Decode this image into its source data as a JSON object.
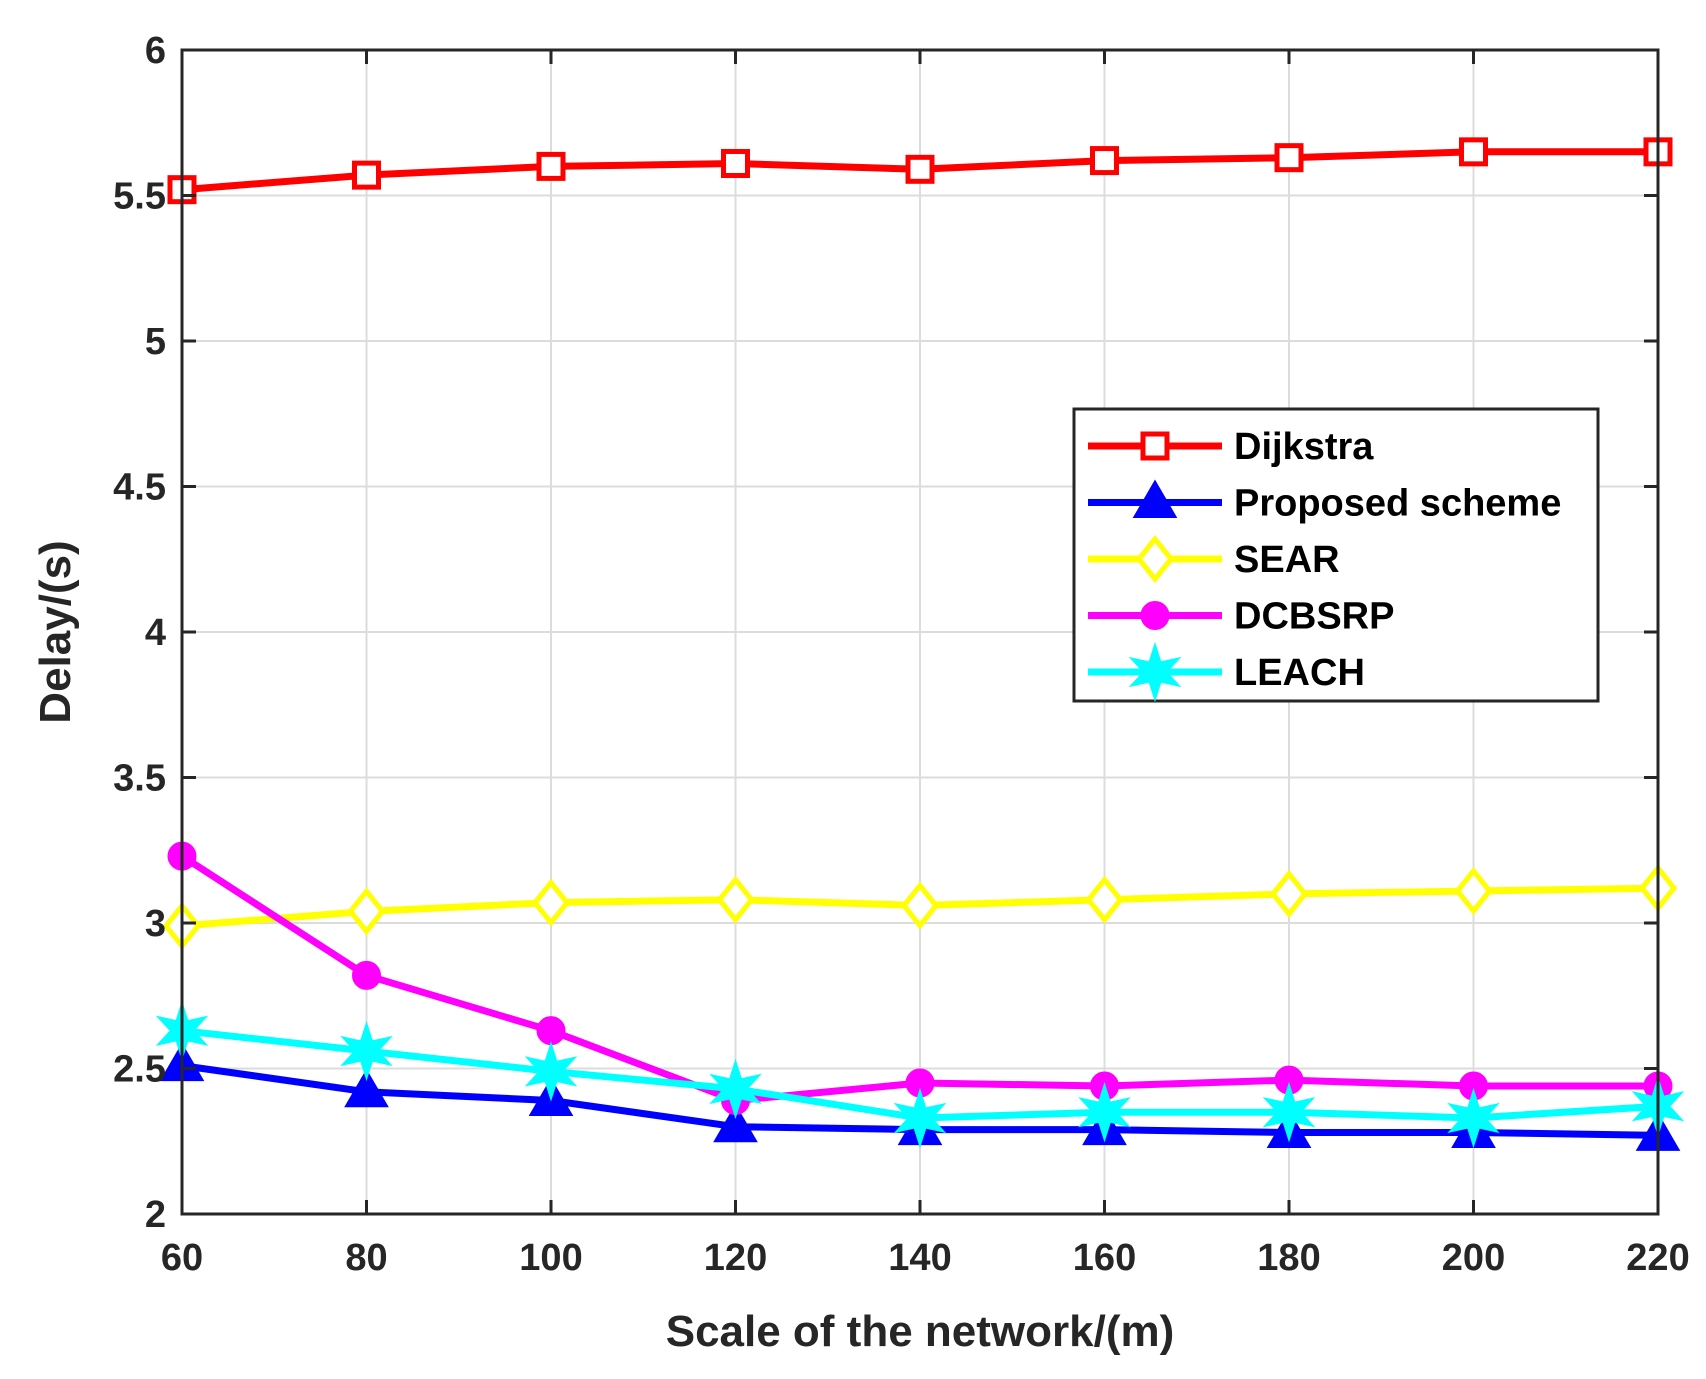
{
  "chart_data": {
    "type": "line",
    "title": "",
    "xlabel": "Scale of the network/(m)",
    "ylabel": "Delay/(s)",
    "x": [
      60,
      80,
      100,
      120,
      140,
      160,
      180,
      200,
      220
    ],
    "xlim": [
      60,
      220
    ],
    "ylim": [
      2,
      6
    ],
    "xticks": [
      "60",
      "80",
      "100",
      "120",
      "140",
      "160",
      "180",
      "200",
      "220"
    ],
    "yticks": [
      "2",
      "2.5",
      "3",
      "3.5",
      "4",
      "4.5",
      "5",
      "5.5",
      "6"
    ],
    "grid": true,
    "legend_position": "center-right",
    "series": [
      {
        "name": "Dijkstra",
        "color": "#ff0000",
        "marker": "square",
        "values": [
          5.52,
          5.57,
          5.6,
          5.61,
          5.59,
          5.62,
          5.63,
          5.65,
          5.65
        ]
      },
      {
        "name": "Proposed scheme",
        "color": "#0000ff",
        "marker": "triangle",
        "values": [
          2.51,
          2.42,
          2.39,
          2.3,
          2.29,
          2.29,
          2.28,
          2.28,
          2.27
        ]
      },
      {
        "name": "SEAR",
        "color": "#ffff00",
        "marker": "diamond",
        "values": [
          2.99,
          3.04,
          3.07,
          3.08,
          3.06,
          3.08,
          3.1,
          3.11,
          3.12
        ]
      },
      {
        "name": "DCBSRP",
        "color": "#ff00ff",
        "marker": "circle",
        "values": [
          3.23,
          2.82,
          2.63,
          2.39,
          2.45,
          2.44,
          2.46,
          2.44,
          2.44
        ]
      },
      {
        "name": "LEACH",
        "color": "#00ffff",
        "marker": "star",
        "values": [
          2.63,
          2.56,
          2.49,
          2.43,
          2.33,
          2.35,
          2.35,
          2.33,
          2.37
        ]
      }
    ]
  }
}
